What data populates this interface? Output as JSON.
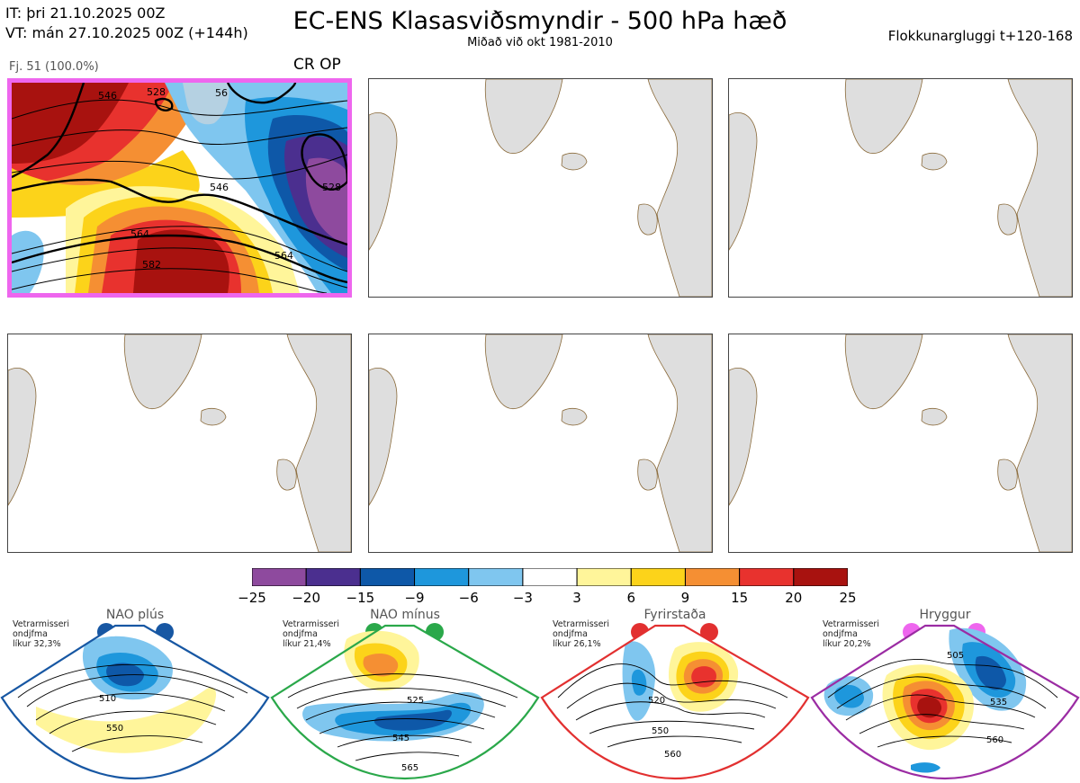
{
  "header": {
    "init_line": "IT: þri 21.10.2025 00Z",
    "valid_line": "VT: mán 27.10.2025 00Z  (+144h)",
    "title": "EC-ENS Klasasviðsmyndir - 500 hPa hæð",
    "subtitle": "Miðað við okt 1981-2010",
    "window": "Flokkunargluggi t+120-168"
  },
  "cluster": {
    "members": "Fj. 51 (100.0%)",
    "code": "CR OP",
    "contour_labels": [
      "528",
      "528",
      "546",
      "546",
      "564",
      "564",
      "582",
      "56"
    ]
  },
  "colorbar": {
    "ticks": [
      "−25",
      "−20",
      "−15",
      "−9",
      "−6",
      "−3",
      "3",
      "6",
      "9",
      "15",
      "20",
      "25"
    ],
    "colors": [
      "#8e4a9e",
      "#4b2f8f",
      "#0e58a8",
      "#1e97dc",
      "#7fc6ef",
      "#ffffff",
      "#fff59a",
      "#fcd31a",
      "#f58f33",
      "#e8322e",
      "#a8120f"
    ]
  },
  "regimes": [
    {
      "name": "NAO plús",
      "info": [
        "Vetrarmisseri",
        "ondjfma",
        "líkur 32,3%"
      ],
      "color": "#1757a3",
      "labels": [
        "510",
        "550"
      ]
    },
    {
      "name": "NAO mínus",
      "info": [
        "Vetrarmisseri",
        "ondjfma",
        "líkur 21,4%"
      ],
      "color": "#2aa84a",
      "labels": [
        "525",
        "545",
        "565"
      ]
    },
    {
      "name": "Fyrirstaða",
      "info": [
        "Vetrarmisseri",
        "ondjfma",
        "líkur 26,1%"
      ],
      "color": "#e23030",
      "labels": [
        "520",
        "550",
        "560"
      ]
    },
    {
      "name": "Hryggur",
      "info": [
        "Vetrarmisseri",
        "ondjfma",
        "líkur 20,2%"
      ],
      "color": "#ee66ee",
      "labels": [
        "505",
        "535",
        "560"
      ]
    }
  ]
}
